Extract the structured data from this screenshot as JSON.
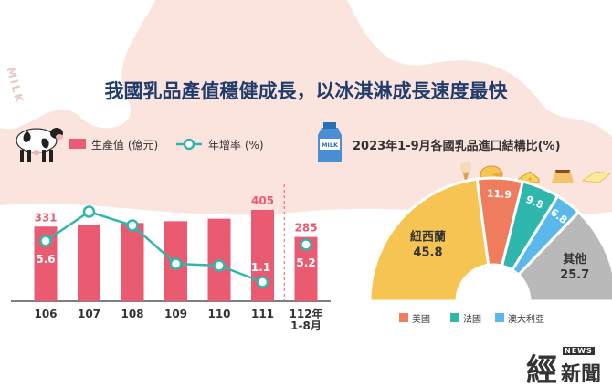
{
  "title": "我國乳品產值穩健成長，以冰淇淋成長速度最快",
  "watermark": "MILK",
  "carton_text": "MILK",
  "logo": {
    "main": "經",
    "sub": "新聞",
    "news": "NEWS"
  },
  "colors": {
    "accent_bar": "#ea5b72",
    "accent_line": "#2fb7ad",
    "title": "#1f3c6b",
    "nz": "#f5c453",
    "us": "#ef7d5d",
    "fr": "#2fb7ad",
    "au": "#5bb8ea",
    "other": "#b9b9b9"
  },
  "left_legend": {
    "bar_label": "生產值 (億元)",
    "line_label": "年增率 (%)"
  },
  "right_title": "2023年1-9月各國乳品進口結構比(%)",
  "pie_legend": [
    "美國",
    "法國",
    "澳大利亞"
  ],
  "chart_data": [
    {
      "type": "bar",
      "categories": [
        "106",
        "107",
        "108",
        "109",
        "110",
        "111",
        "112年\n1-8月"
      ],
      "series": [
        {
          "name": "生產值 (億元)",
          "values": [
            331,
            339,
            347,
            355,
            366,
            405,
            285
          ]
        },
        {
          "name": "年增率 (%)",
          "type": "line",
          "values": [
            5.6,
            8.8,
            7.3,
            3.1,
            2.9,
            1.1,
            5.2
          ]
        }
      ],
      "data_labels": {
        "bars": [
          "331",
          null,
          null,
          null,
          null,
          "405",
          "285"
        ],
        "line": [
          "5.6",
          null,
          null,
          null,
          null,
          "1.1",
          "5.2"
        ]
      }
    },
    {
      "type": "pie",
      "labels": [
        "紐西蘭",
        "美國",
        "法國",
        "澳大利亞",
        "其他"
      ],
      "values": [
        45.8,
        11.9,
        9.8,
        6.8,
        25.7
      ],
      "colors": [
        "#f5c453",
        "#ef7d5d",
        "#2fb7ad",
        "#5bb8ea",
        "#b9b9b9"
      ]
    }
  ]
}
